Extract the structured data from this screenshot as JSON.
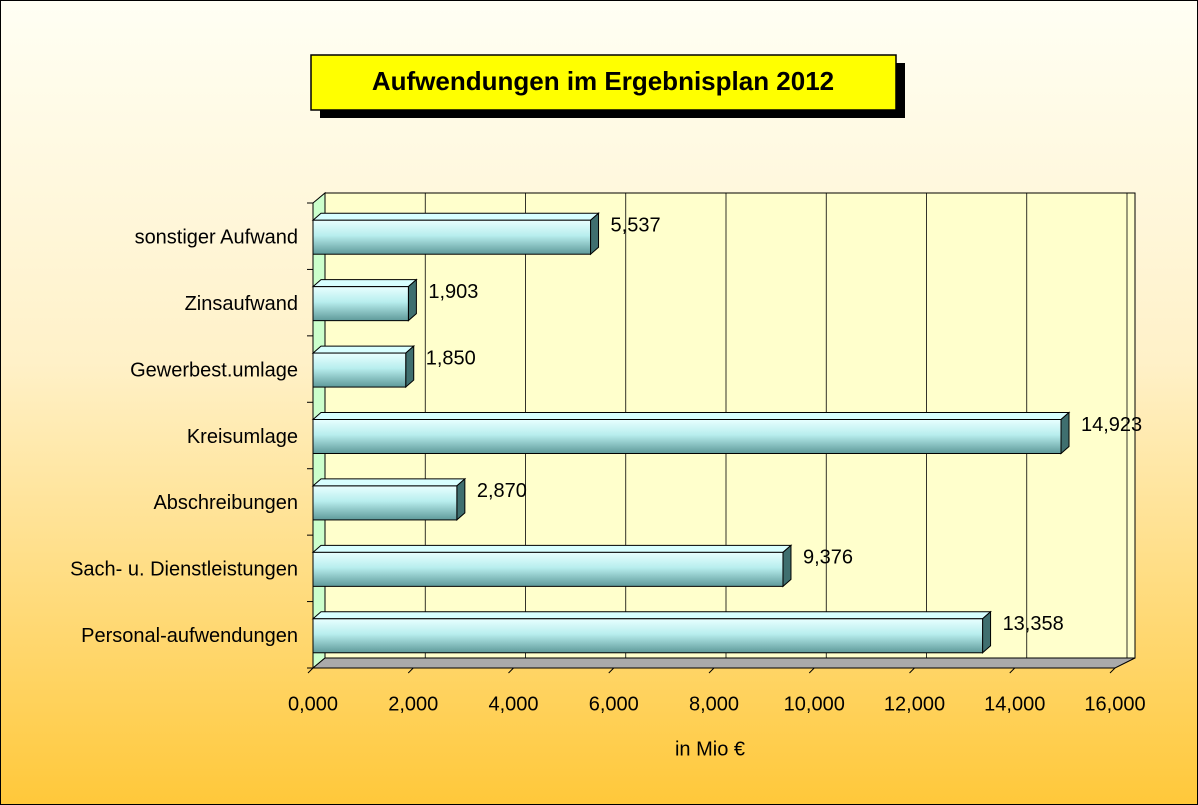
{
  "chart_data": {
    "type": "bar",
    "orientation": "horizontal",
    "title": "Aufwendungen im Ergebnisplan 2012",
    "x_label": "in Mio €",
    "categories": [
      "sonstiger Aufwand",
      "Zinsaufwand",
      "Gewerbest.umlage",
      "Kreisumlage",
      "Abschreibungen",
      "Sach- u. Dienstleistungen",
      "Personal-aufwendungen"
    ],
    "values": [
      5.537,
      1.903,
      1.85,
      14.923,
      2.87,
      9.376,
      13.358
    ],
    "value_labels": [
      "5,537",
      "1,903",
      "1,850",
      "14,923",
      "2,870",
      "9,376",
      "13,358"
    ],
    "color": "#99dddd",
    "xlim": [
      0,
      16
    ],
    "xticks": [
      {
        "value": 0,
        "label": "0,000"
      },
      {
        "value": 2,
        "label": "2,000"
      },
      {
        "value": 4,
        "label": "4,000"
      },
      {
        "value": 6,
        "label": "6,000"
      },
      {
        "value": 8,
        "label": "8,000"
      },
      {
        "value": 10,
        "label": "10,000"
      },
      {
        "value": 12,
        "label": "12,000"
      },
      {
        "value": 14,
        "label": "14,000"
      },
      {
        "value": 16,
        "label": "16,000"
      }
    ],
    "grid": true
  }
}
